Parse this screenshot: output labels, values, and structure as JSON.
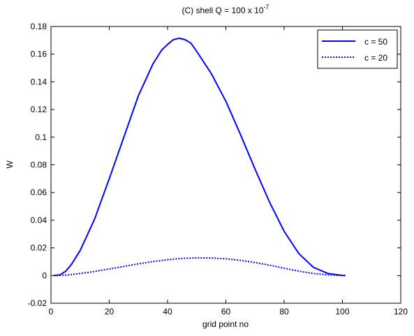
{
  "chart_data": {
    "type": "line",
    "title": {
      "main": "(C) shell  Q = 100 x 10",
      "exponent": "-7"
    },
    "xlabel": "grid point no",
    "ylabel": "W",
    "xlim": [
      0,
      120
    ],
    "ylim": [
      -0.02,
      0.18
    ],
    "xticks": [
      0,
      20,
      40,
      60,
      80,
      100,
      120
    ],
    "yticks": [
      -0.02,
      0,
      0.02,
      0.04,
      0.06,
      0.08,
      0.1,
      0.12,
      0.14,
      0.16,
      0.18
    ],
    "xtick_labels": [
      "0",
      "20",
      "40",
      "60",
      "80",
      "100",
      "120"
    ],
    "ytick_labels": [
      "-0.02",
      "0",
      "0.02",
      "0.04",
      "0.06",
      "0.08",
      "0.1",
      "0.12",
      "0.14",
      "0.16",
      "0.18"
    ],
    "grid": false,
    "legend_position": "top-right",
    "series": [
      {
        "name": "c = 50",
        "color": "#0000ff",
        "style": "solid",
        "x": [
          1,
          3,
          5,
          7,
          10,
          15,
          20,
          25,
          30,
          35,
          38,
          40,
          42,
          44,
          46,
          48,
          50,
          55,
          60,
          65,
          70,
          75,
          80,
          85,
          90,
          95,
          100,
          101
        ],
        "y": [
          0,
          0.0005,
          0.003,
          0.008,
          0.018,
          0.041,
          0.07,
          0.1,
          0.13,
          0.153,
          0.163,
          0.167,
          0.1705,
          0.1715,
          0.1705,
          0.168,
          0.162,
          0.146,
          0.126,
          0.102,
          0.077,
          0.053,
          0.032,
          0.016,
          0.006,
          0.0015,
          0.0001,
          0
        ]
      },
      {
        "name": "c = 20",
        "color": "#0000ff",
        "style": "dotted",
        "x": [
          1,
          5,
          10,
          15,
          20,
          25,
          30,
          35,
          40,
          45,
          50,
          55,
          60,
          65,
          70,
          75,
          80,
          85,
          90,
          95,
          100,
          101
        ],
        "y": [
          0,
          0.0003,
          0.0015,
          0.003,
          0.0048,
          0.0066,
          0.0085,
          0.0101,
          0.0115,
          0.0124,
          0.0128,
          0.0127,
          0.0121,
          0.011,
          0.0094,
          0.0075,
          0.0053,
          0.0032,
          0.0015,
          0.0005,
          0.0001,
          0
        ]
      }
    ]
  }
}
